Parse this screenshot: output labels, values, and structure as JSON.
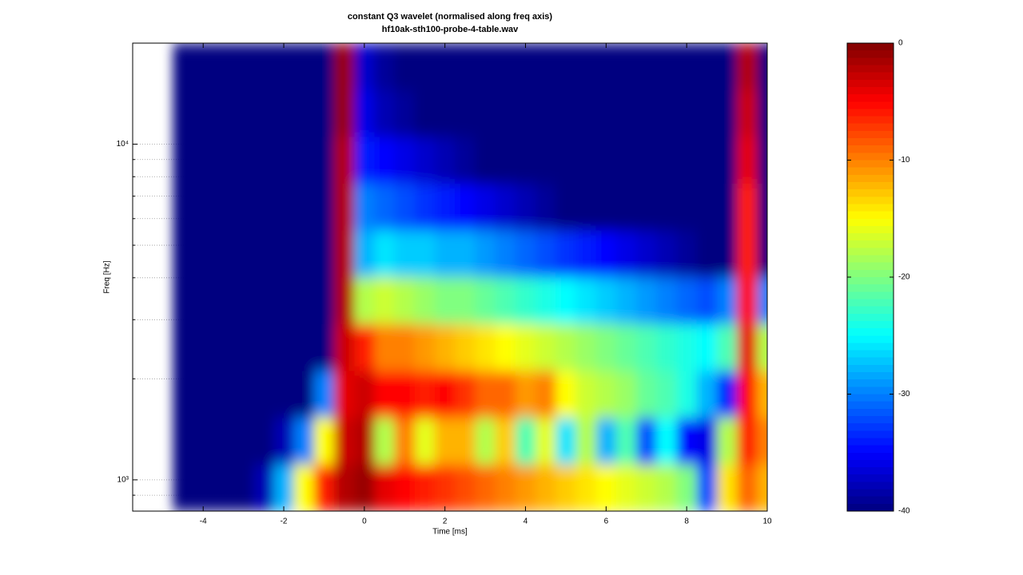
{
  "chart_data": {
    "type": "heatmap",
    "title": "constant Q3 wavelet (normalised along freq axis)",
    "subtitle": "hf10ak-sth100-probe-4-table.wav",
    "xlabel": "Time [ms]",
    "ylabel": "Freq [Hz]",
    "xlim": [
      -5.75,
      10
    ],
    "xticks": [
      -4,
      -2,
      0,
      2,
      4,
      6,
      8,
      10
    ],
    "ylim": [
      807,
      20000
    ],
    "yscale": "log",
    "yticks": [
      {
        "value": 1000,
        "label": "10³"
      },
      {
        "value": 10000,
        "label": "10⁴"
      }
    ],
    "yminorticks": [
      900,
      2000,
      3000,
      4000,
      5000,
      6000,
      7000,
      8000,
      9000
    ],
    "colormap": "jet",
    "clim": [
      -40,
      0
    ],
    "cticks": [
      0,
      -10,
      -20,
      -30,
      -40
    ],
    "x": [
      -4.5,
      -4,
      -3.5,
      -3,
      -2.5,
      -2,
      -1.5,
      -1,
      -0.5,
      0,
      0.5,
      1,
      1.5,
      2,
      2.5,
      3,
      3.5,
      4,
      4.5,
      5,
      5.5,
      6,
      6.5,
      7,
      7.5,
      8,
      8.5,
      9,
      9.5,
      10
    ],
    "y": [
      948,
      1306,
      1803,
      2483,
      3427,
      4721,
      6516,
      8977,
      12380,
      17060
    ],
    "z": [
      [
        -40,
        -40,
        -40,
        -40,
        -38,
        -28,
        -15,
        -6,
        -2,
        -1,
        -4,
        -5,
        -6,
        -7,
        -8,
        -9,
        -10,
        -11,
        -12,
        -13,
        -14,
        -15,
        -16,
        -17,
        -18,
        -20,
        -32,
        -14,
        -9,
        -12
      ],
      [
        -40,
        -40,
        -40,
        -40,
        -40,
        -38,
        -30,
        -15,
        -3,
        -2,
        -18,
        -10,
        -16,
        -12,
        -12,
        -18,
        -13,
        -22,
        -16,
        -26,
        -18,
        -28,
        -22,
        -32,
        -25,
        -35,
        -36,
        -18,
        -6,
        -10
      ],
      [
        -40,
        -40,
        -40,
        -40,
        -40,
        -40,
        -40,
        -30,
        -4,
        -3,
        -5,
        -5,
        -6,
        -5,
        -7,
        -9,
        -9,
        -11,
        -10,
        -15,
        -17,
        -18,
        -19,
        -21,
        -22,
        -24,
        -28,
        -34,
        -5,
        -12
      ],
      [
        -40,
        -40,
        -40,
        -40,
        -40,
        -40,
        -40,
        -40,
        -3,
        -6,
        -10,
        -10,
        -11,
        -12,
        -13,
        -14,
        -15,
        -16,
        -17,
        -18,
        -19,
        -20,
        -21,
        -22,
        -23,
        -24,
        -25,
        -22,
        -4,
        -18
      ],
      [
        -40,
        -40,
        -40,
        -40,
        -40,
        -40,
        -40,
        -40,
        -2,
        -18,
        -17,
        -18,
        -19,
        -20,
        -20,
        -21,
        -22,
        -23,
        -24,
        -25,
        -26,
        -27,
        -28,
        -29,
        -30,
        -31,
        -32,
        -30,
        -5,
        -30
      ],
      [
        -40,
        -40,
        -40,
        -40,
        -40,
        -40,
        -40,
        -40,
        -2,
        -28,
        -26,
        -27,
        -27,
        -28,
        -28,
        -29,
        -30,
        -31,
        -32,
        -33,
        -34,
        -35,
        -36,
        -37,
        -38,
        -39,
        -40,
        -40,
        -6,
        -40
      ],
      [
        -40,
        -40,
        -40,
        -40,
        -40,
        -40,
        -40,
        -40,
        -2,
        -30,
        -31,
        -32,
        -33,
        -34,
        -35,
        -36,
        -37,
        -38,
        -39,
        -40,
        -40,
        -40,
        -40,
        -40,
        -40,
        -40,
        -40,
        -40,
        -6,
        -40
      ],
      [
        -40,
        -40,
        -40,
        -40,
        -40,
        -40,
        -40,
        -40,
        -2,
        -34,
        -35,
        -36,
        -37,
        -38,
        -39,
        -40,
        -40,
        -40,
        -40,
        -40,
        -40,
        -40,
        -40,
        -40,
        -40,
        -40,
        -40,
        -40,
        -4,
        -40
      ],
      [
        -40,
        -40,
        -40,
        -40,
        -40,
        -40,
        -40,
        -40,
        -1,
        -36,
        -38,
        -39,
        -40,
        -40,
        -40,
        -40,
        -40,
        -40,
        -40,
        -40,
        -40,
        -40,
        -40,
        -40,
        -40,
        -40,
        -40,
        -40,
        -3,
        -40
      ],
      [
        -40,
        -40,
        -40,
        -40,
        -40,
        -40,
        -40,
        -40,
        -1,
        -37,
        -39,
        -40,
        -40,
        -40,
        -40,
        -40,
        -40,
        -40,
        -40,
        -40,
        -40,
        -40,
        -40,
        -40,
        -40,
        -40,
        -40,
        -40,
        -2,
        -40
      ]
    ]
  }
}
